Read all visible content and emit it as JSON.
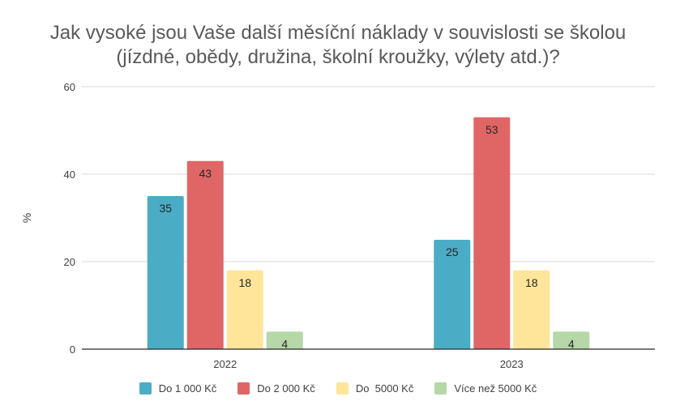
{
  "chart_data": {
    "type": "bar",
    "title_lines": [
      "Jak vysoké jsou Vaše další měsíční náklady v souvislosti se školou",
      "(jízdné, obědy, družina, školní kroužky, výlety atd.)?"
    ],
    "ylabel": "%",
    "xlabel": "",
    "ylim": [
      0,
      60
    ],
    "yticks": [
      0,
      20,
      40,
      60
    ],
    "grid": true,
    "legend_position": "bottom",
    "categories": [
      "2022",
      "2023"
    ],
    "series": [
      {
        "name": "Do 1 000 Kč",
        "color": "#4BACC6",
        "values": [
          35,
          25
        ]
      },
      {
        "name": "Do 2 000 Kč",
        "color": "#E06666",
        "values": [
          43,
          53
        ]
      },
      {
        "name": "Do  5000 Kč",
        "color": "#FFE599",
        "values": [
          18,
          18
        ]
      },
      {
        "name": "Více než 5000 Kč",
        "color": "#B6D7A8",
        "values": [
          4,
          4
        ]
      }
    ]
  }
}
